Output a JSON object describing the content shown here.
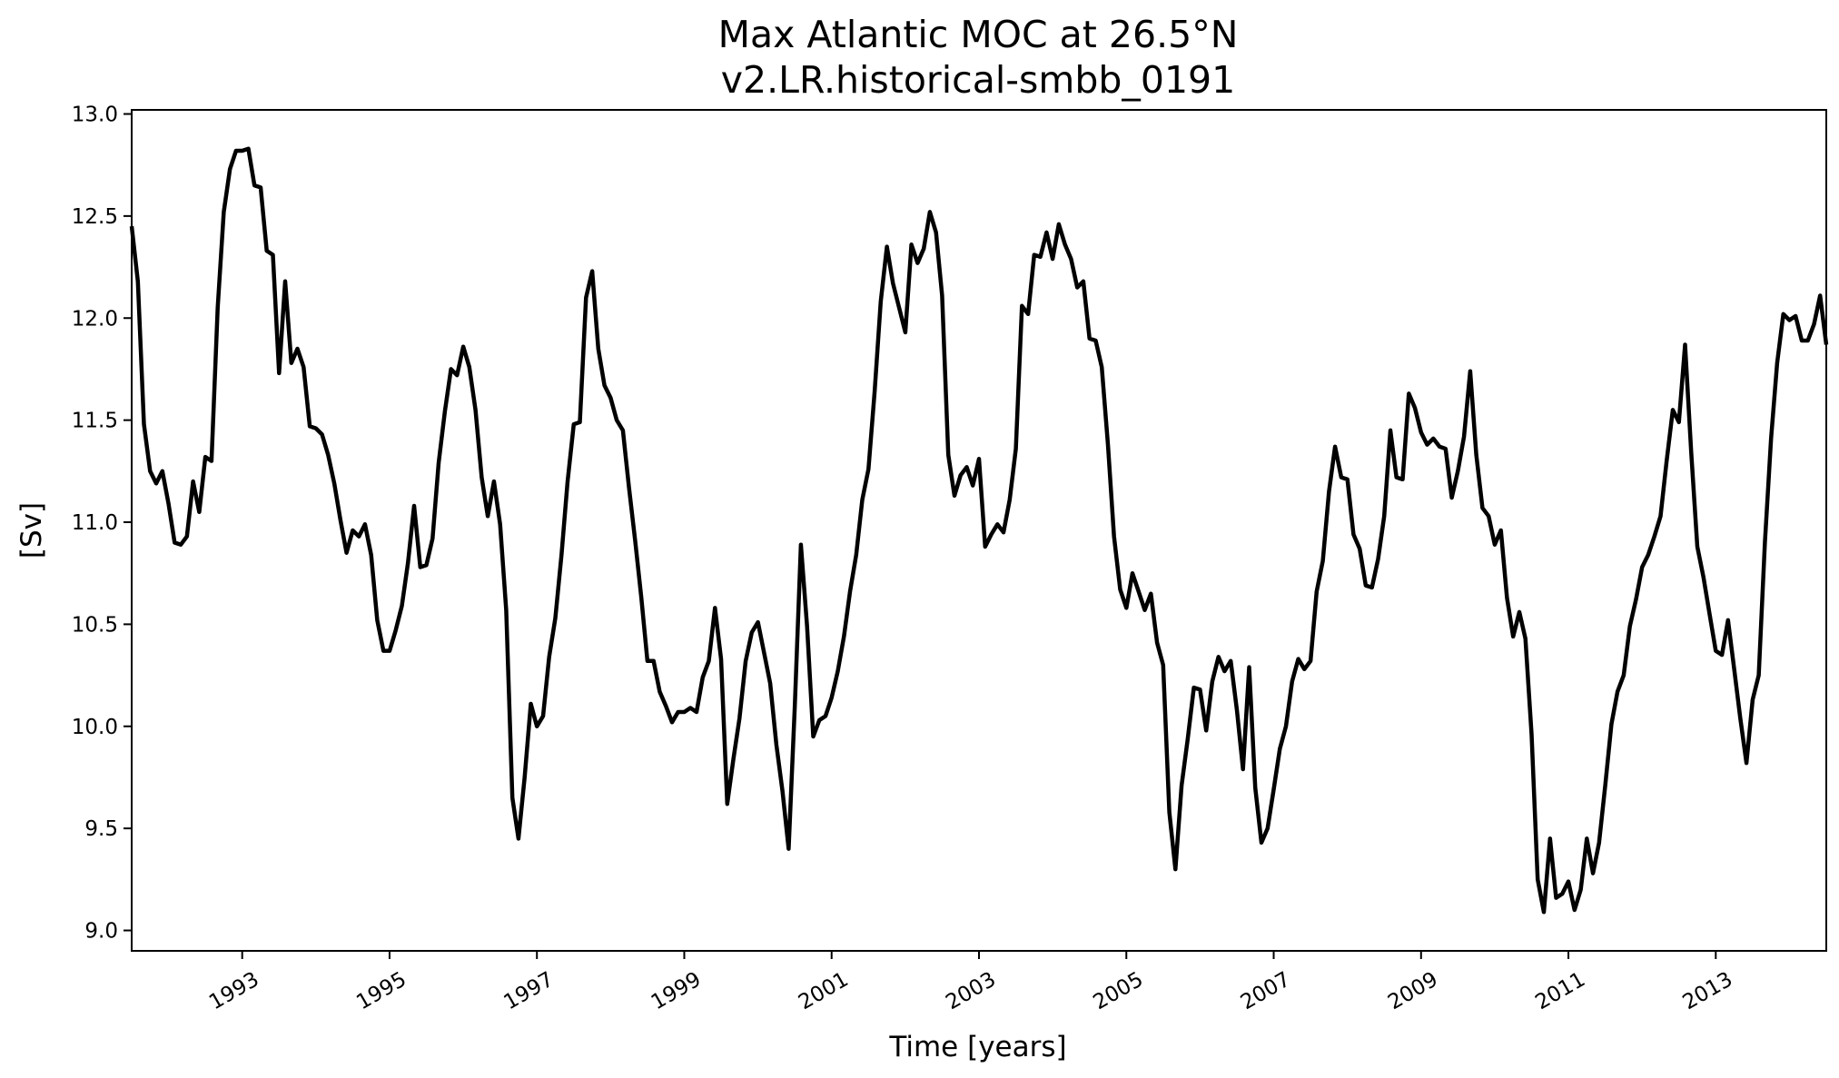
{
  "chart_data": {
    "type": "line",
    "title": "Max Atlantic MOC at 26.5°N",
    "subtitle": "v2.LR.historical-smbb_0191",
    "xlabel": "Time [years]",
    "ylabel": "[Sv]",
    "xlim": [
      1991.5,
      2014.5
    ],
    "ylim": [
      8.9,
      13.02
    ],
    "x_ticks": [
      1993,
      1995,
      1997,
      1999,
      2001,
      2003,
      2005,
      2007,
      2009,
      2011,
      2013
    ],
    "x_tick_labels": [
      "1993",
      "1995",
      "1997",
      "1999",
      "2001",
      "2003",
      "2005",
      "2007",
      "2009",
      "2011",
      "2013"
    ],
    "y_ticks": [
      9.0,
      9.5,
      10.0,
      10.5,
      11.0,
      11.5,
      12.0,
      12.5,
      13.0
    ],
    "y_tick_labels": [
      "9.0",
      "9.5",
      "10.0",
      "10.5",
      "11.0",
      "11.5",
      "12.0",
      "12.5",
      "13.0"
    ],
    "grid": false,
    "line_color": "#000000",
    "series": [
      {
        "x_start": 1991.5,
        "x_step": 0.0833333,
        "values": [
          12.45,
          12.18,
          11.48,
          11.25,
          11.19,
          11.25,
          11.09,
          10.9,
          10.89,
          10.93,
          11.2,
          11.05,
          11.32,
          11.3,
          12.05,
          12.52,
          12.73,
          12.82,
          12.82,
          12.83,
          12.65,
          12.64,
          12.33,
          12.31,
          11.73,
          12.18,
          11.78,
          11.85,
          11.76,
          11.47,
          11.46,
          11.43,
          11.33,
          11.19,
          11.01,
          10.85,
          10.96,
          10.93,
          10.99,
          10.84,
          10.52,
          10.37,
          10.37,
          10.47,
          10.59,
          10.8,
          11.08,
          10.78,
          10.79,
          10.92,
          11.29,
          11.54,
          11.75,
          11.72,
          11.86,
          11.76,
          11.55,
          11.22,
          11.03,
          11.2,
          10.99,
          10.57,
          9.65,
          9.45,
          9.75,
          10.11,
          10.0,
          10.05,
          10.34,
          10.53,
          10.84,
          11.2,
          11.48,
          11.49,
          12.1,
          12.23,
          11.85,
          11.67,
          11.61,
          11.5,
          11.45,
          11.17,
          10.91,
          10.63,
          10.32,
          10.32,
          10.17,
          10.1,
          10.02,
          10.07,
          10.07,
          10.09,
          10.07,
          10.24,
          10.32,
          10.58,
          10.33,
          9.62,
          9.84,
          10.04,
          10.32,
          10.46,
          10.51,
          10.36,
          10.21,
          9.91,
          9.68,
          9.4,
          10.1,
          10.89,
          10.49,
          9.95,
          10.03,
          10.05,
          10.14,
          10.27,
          10.44,
          10.66,
          10.84,
          11.11,
          11.26,
          11.64,
          12.08,
          12.35,
          12.17,
          12.05,
          11.93,
          12.36,
          12.27,
          12.34,
          12.52,
          12.42,
          12.11,
          11.33,
          11.13,
          11.23,
          11.27,
          11.18,
          11.31,
          10.88,
          10.94,
          10.99,
          10.95,
          11.11,
          11.36,
          12.06,
          12.02,
          12.31,
          12.3,
          12.42,
          12.29,
          12.46,
          12.36,
          12.29,
          12.15,
          12.18,
          11.9,
          11.89,
          11.76,
          11.38,
          10.93,
          10.67,
          10.58,
          10.75,
          10.66,
          10.57,
          10.65,
          10.41,
          10.3,
          9.58,
          9.3,
          9.71,
          9.94,
          10.19,
          10.18,
          9.98,
          10.22,
          10.34,
          10.27,
          10.32,
          10.08,
          9.79,
          10.29,
          9.7,
          9.43,
          9.5,
          9.69,
          9.89,
          10.0,
          10.22,
          10.33,
          10.28,
          10.32,
          10.66,
          10.81,
          11.15,
          11.37,
          11.22,
          11.21,
          10.94,
          10.87,
          10.69,
          10.68,
          10.82,
          11.03,
          11.45,
          11.22,
          11.21,
          11.63,
          11.56,
          11.44,
          11.38,
          11.41,
          11.37,
          11.36,
          11.12,
          11.25,
          11.42,
          11.74,
          11.33,
          11.07,
          11.03,
          10.89,
          10.96,
          10.63,
          10.44,
          10.56,
          10.43,
          9.96,
          9.25,
          9.09,
          9.45,
          9.16,
          9.18,
          9.24,
          9.1,
          9.2,
          9.45,
          9.28,
          9.43,
          9.71,
          10.01,
          10.17,
          10.25,
          10.49,
          10.62,
          10.78,
          10.84,
          10.93,
          11.03,
          11.3,
          11.55,
          11.49,
          11.87,
          11.34,
          10.88,
          10.73,
          10.55,
          10.37,
          10.35,
          10.52,
          10.28,
          10.04,
          9.82,
          10.13,
          10.25,
          10.9,
          11.41,
          11.78,
          12.02,
          11.99,
          12.01,
          11.89,
          11.89,
          11.97,
          12.11,
          11.87
        ]
      }
    ]
  }
}
